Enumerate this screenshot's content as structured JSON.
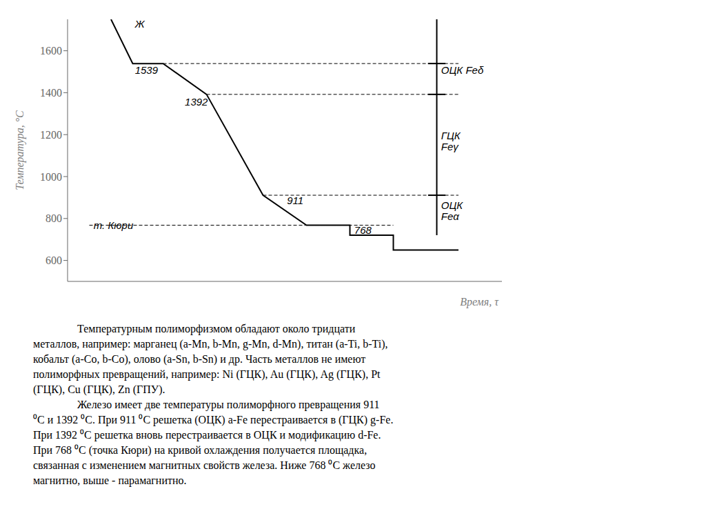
{
  "chart_data": {
    "type": "line",
    "xlabel": "Время, τ",
    "ylabel": "Температура, °C",
    "xlim": [
      0,
      10
    ],
    "ylim": [
      500,
      1750
    ],
    "yticks": [
      600,
      800,
      1000,
      1200,
      1400,
      1600
    ],
    "tick_labels": "y",
    "series": [
      {
        "x": [
          1.0,
          1.5,
          2.2,
          3.2,
          3.2,
          4.5,
          4.5,
          5.5,
          6.5,
          6.5,
          7.5,
          7.5,
          9.0
        ],
        "values": [
          1750,
          1539,
          1539,
          1392,
          1392,
          911,
          911,
          768,
          768,
          720,
          720,
          650,
          650
        ],
        "color": "#000000",
        "line_style": "solid"
      },
      {
        "x": [
          2.2,
          9.0
        ],
        "values": [
          1539,
          1539
        ],
        "color": "#000000",
        "line_style": "dashed"
      },
      {
        "x": [
          3.2,
          9.0
        ],
        "values": [
          1392,
          1392
        ],
        "color": "#000000",
        "line_style": "dashed"
      },
      {
        "x": [
          4.5,
          9.0
        ],
        "values": [
          911,
          911
        ],
        "color": "#000000",
        "line_style": "dashed"
      },
      {
        "x": [
          0.5,
          7.5
        ],
        "values": [
          768,
          768
        ],
        "color": "#000000",
        "line_style": "dashed"
      },
      {
        "x": [
          8.5,
          8.5
        ],
        "values": [
          720,
          1750
        ],
        "color": "#000000",
        "line_style": "solid"
      },
      {
        "x": [
          8.3,
          8.7
        ],
        "values": [
          1539,
          1539
        ],
        "color": "#000000",
        "line_style": "solid"
      },
      {
        "x": [
          8.3,
          8.7
        ],
        "values": [
          1392,
          1392
        ],
        "color": "#000000",
        "line_style": "solid"
      },
      {
        "x": [
          8.3,
          8.7
        ],
        "values": [
          911,
          911
        ],
        "color": "#000000",
        "line_style": "solid"
      }
    ],
    "annotations": [
      {
        "text": "Ж",
        "x": 1.55,
        "y": 1710
      },
      {
        "text": "1539",
        "x": 1.55,
        "y": 1490
      },
      {
        "text": "1392",
        "x": 2.7,
        "y": 1340
      },
      {
        "text": "911",
        "x": 5.05,
        "y": 870
      },
      {
        "text": "768",
        "x": 6.6,
        "y": 728
      },
      {
        "text": "т. Кюри",
        "x": 0.6,
        "y": 750
      },
      {
        "text": "ОЦК Feδ",
        "x": 8.6,
        "y": 1490
      },
      {
        "text": "ГЦК\nFeγ",
        "x": 8.6,
        "y": 1150
      },
      {
        "text": "ОЦК\nFeα",
        "x": 8.6,
        "y": 820
      }
    ],
    "paragraphs": [
      [
        "Температурным полиморфизмом обладают около тридцати",
        "металлов, например: марганец (a-Mn, b-Mn, g-Mn, d-Mn), титан (a-Ti, b-Ti),",
        "кобальт (a-Co, b-Co), олово (a-Sn, b-Sn) и др. Часть металлов не имеют",
        "полиморфных превращений, например: Ni (ГЦК), Au (ГЦК), Ag (ГЦК), Pt",
        "(ГЦК), Cu (ГЦК), Zn (ГПУ)."
      ],
      [
        "Железо имеет две температуры полиморфного превращения 911",
        "⁰C и 1392 ⁰C. При 911 ⁰C решетка (ОЦК) a-Fe перестраивается в (ГЦК) g-Fe.",
        "При 1392 ⁰C решетка вновь перестраивается в ОЦК и модификацию d-Fe.",
        "При 768 ⁰C (точка Кюри) на кривой охлаждения получается площадка,",
        "связанная с изменением магнитных свойств железа. Ниже 768 ⁰C железо",
        "магнитно, выше - парамагнитно."
      ]
    ]
  }
}
